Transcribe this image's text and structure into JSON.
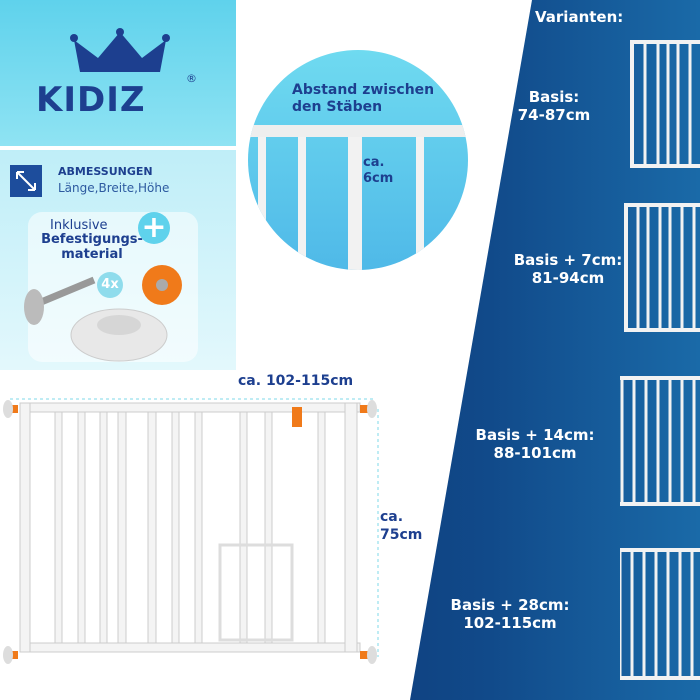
{
  "brand": {
    "name": "KIDIZ",
    "registered": "®"
  },
  "dimensions": {
    "title": "ABMESSUNGEN",
    "subtitle": "Länge,Breite,Höhe",
    "icon": "diagonal-arrows-icon"
  },
  "included": {
    "line1": "Inklusive",
    "line2": "Befestigungs-material",
    "quantity": "4x",
    "icon": "plus-icon"
  },
  "spacing": {
    "title": "Abstand zwischen den Stäben",
    "value": "ca. 6cm"
  },
  "gate": {
    "width": "ca. 102-115cm",
    "height": "ca. 75cm"
  },
  "variants": {
    "title": "Varianten:",
    "items": [
      {
        "name": "Basis:",
        "range": "74-87cm"
      },
      {
        "name": "Basis + 7cm:",
        "range": "81-94cm"
      },
      {
        "name": "Basis + 14cm:",
        "range": "88-101cm"
      },
      {
        "name": "Basis + 28cm:",
        "range": "102-115cm"
      }
    ]
  },
  "colors": {
    "navy": "#0a1f5c",
    "cyan": "#5fd2ec",
    "text_blue": "#1d3f8f",
    "accent_orange": "#f07a1a"
  }
}
